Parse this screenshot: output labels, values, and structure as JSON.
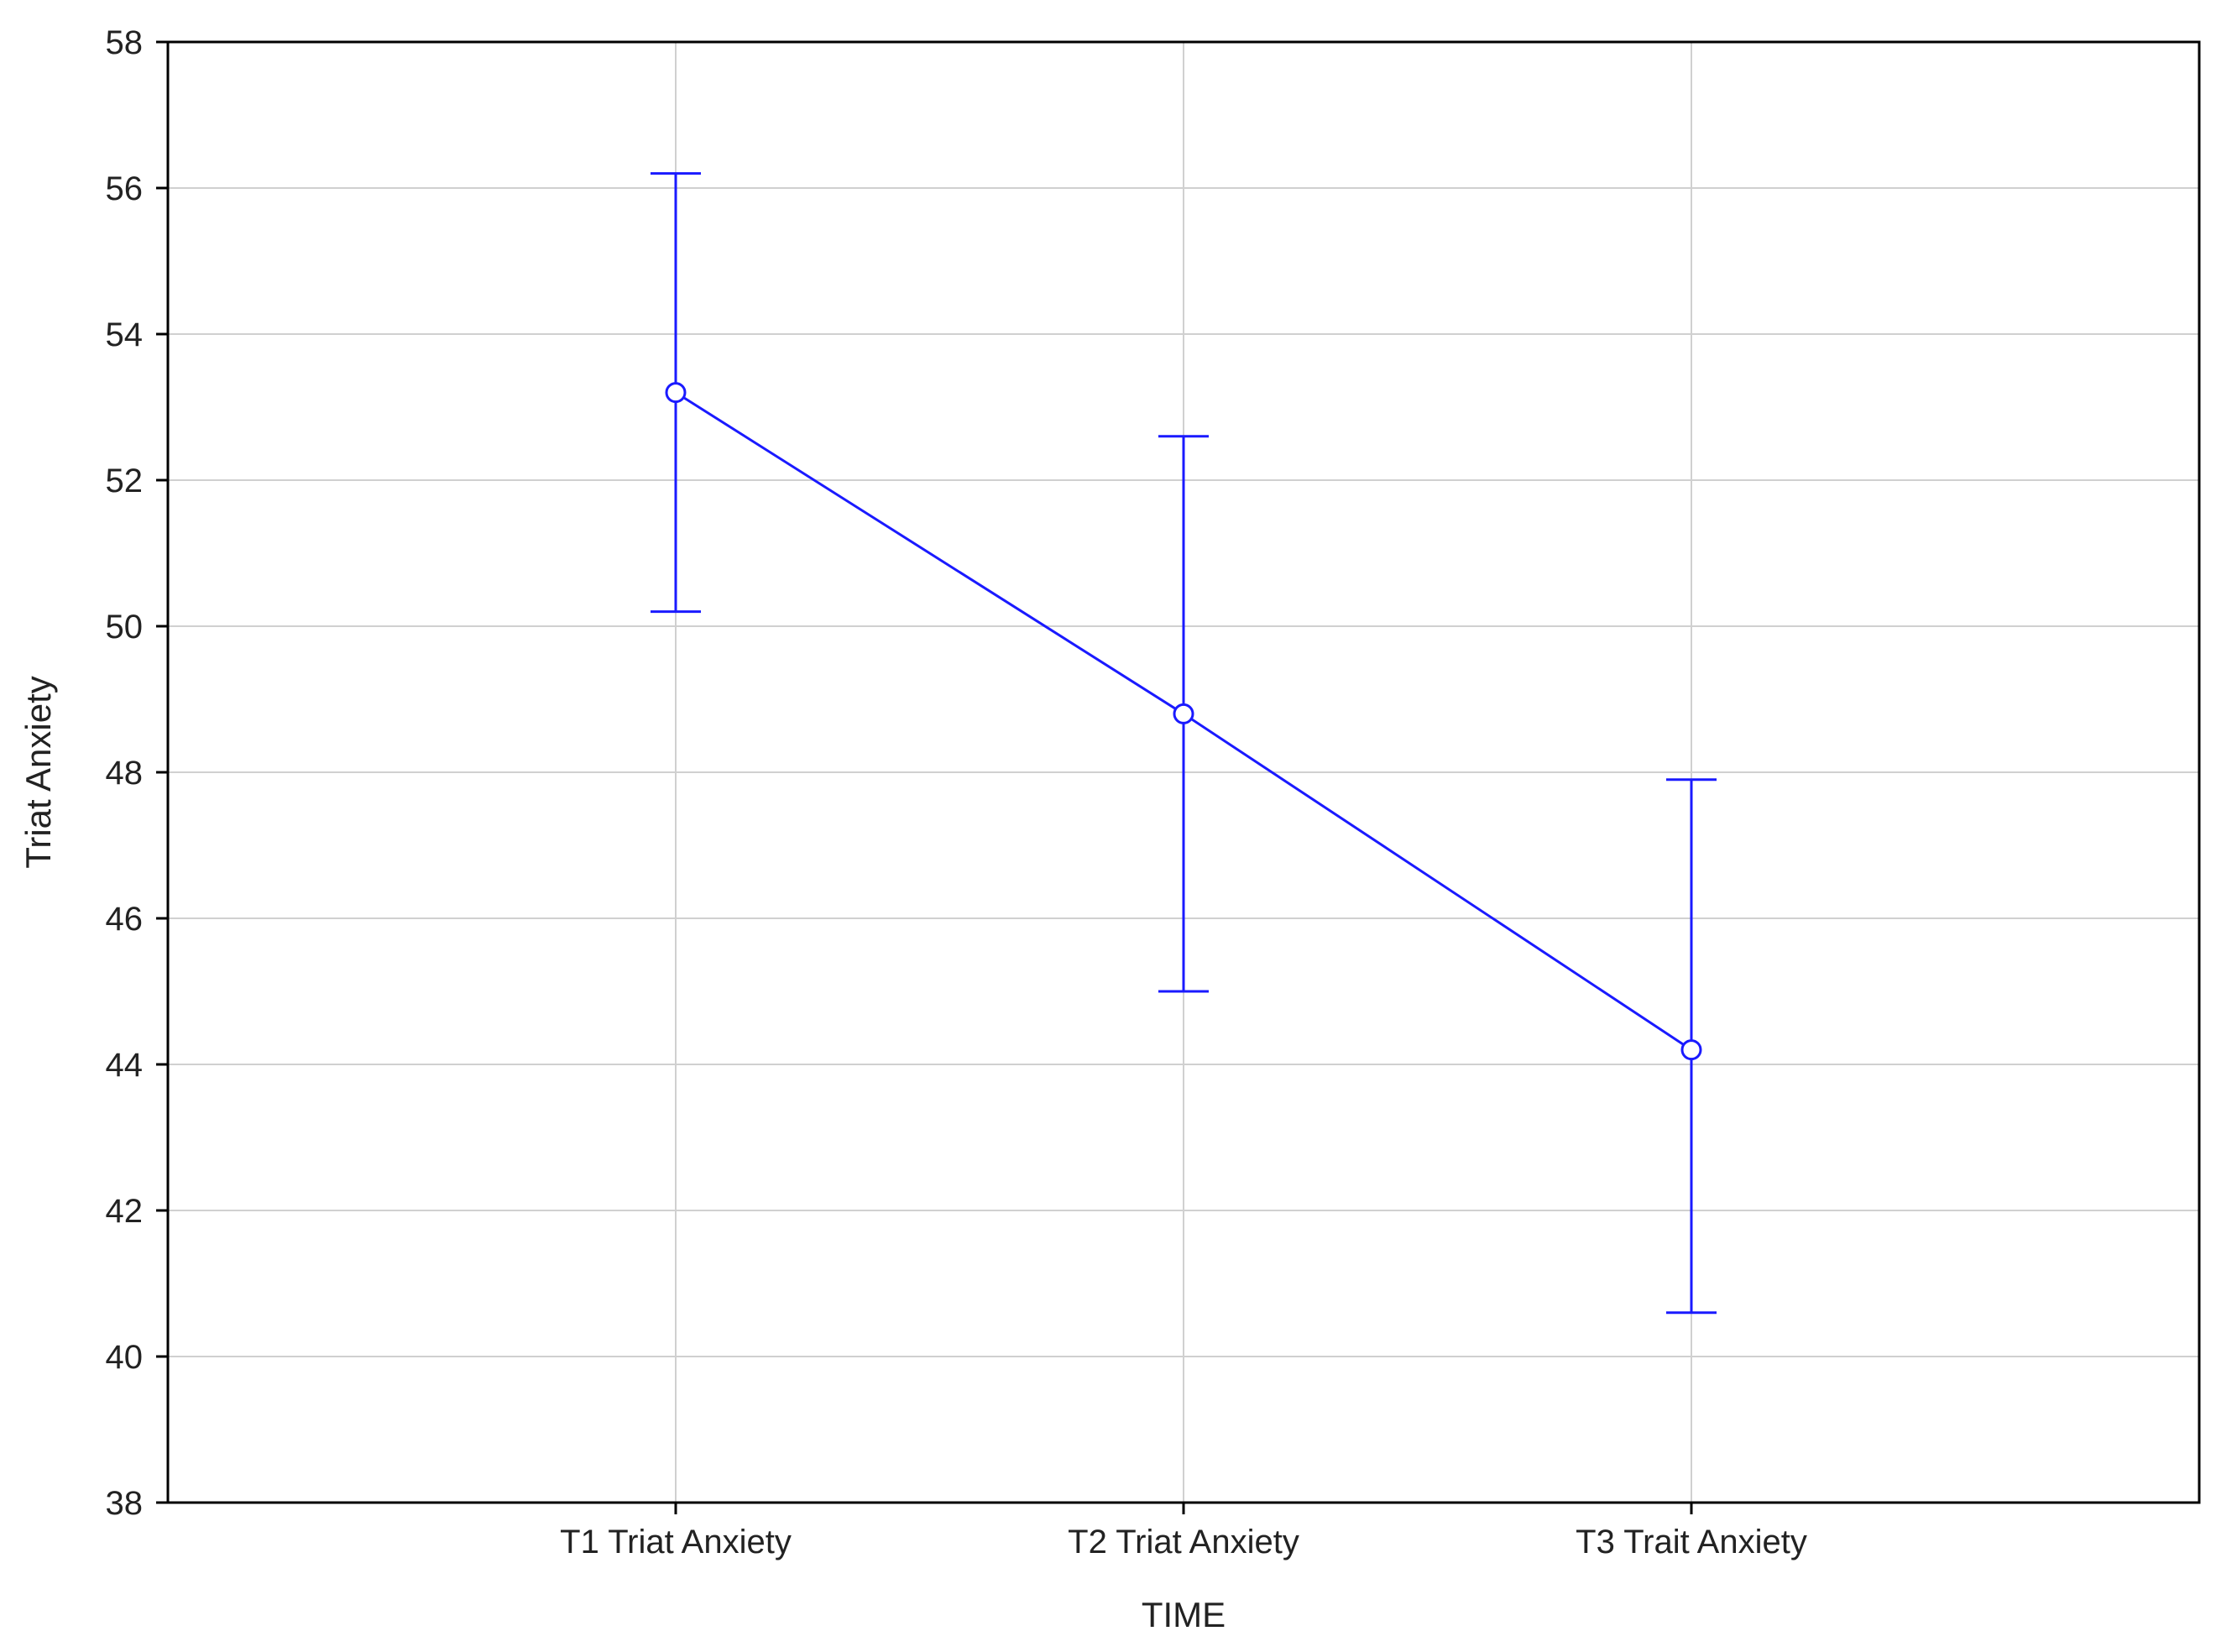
{
  "chart_data": {
    "type": "line",
    "title": "",
    "xlabel": "TIME",
    "ylabel": "Triat Anxiety",
    "categories": [
      "T1 Triat Anxiety",
      "T2 Triat Anxiety",
      "T3 Trait Anxiety"
    ],
    "series": [
      {
        "values": [
          53.2,
          48.8,
          44.2
        ],
        "error_low": [
          50.2,
          45.0,
          40.6
        ],
        "error_high": [
          56.2,
          52.6,
          47.9
        ]
      }
    ],
    "ylim": [
      38,
      58
    ],
    "yticks": [
      "38",
      "40",
      "42",
      "44",
      "46",
      "48",
      "50",
      "52",
      "54",
      "56",
      "58"
    ],
    "grid": true,
    "legend": "none",
    "colors": {
      "series": "#1a1aff",
      "grid": "#d0d0d0",
      "axis": "#000000"
    }
  }
}
